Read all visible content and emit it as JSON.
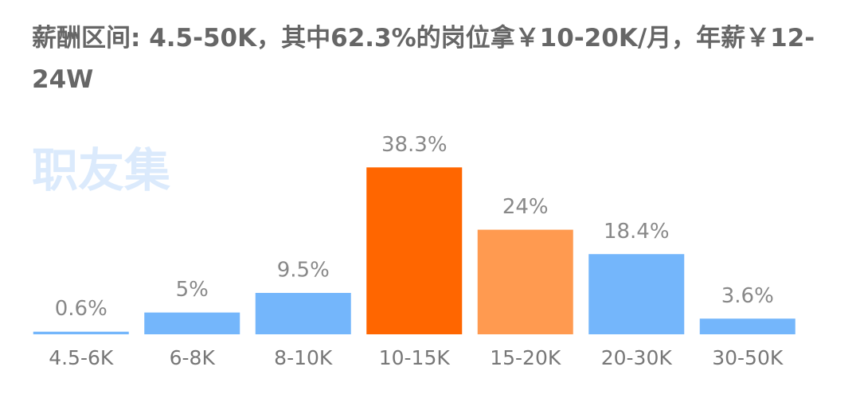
{
  "chart_data": {
    "type": "bar",
    "title": "薪酬区间: 4.5-50K，其中62.3%的岗位拿￥10-20K/月，年薪￥12-24W",
    "watermark": "职友集",
    "categories": [
      "4.5-6K",
      "6-8K",
      "8-10K",
      "10-15K",
      "15-20K",
      "20-30K",
      "30-50K"
    ],
    "values": [
      0.6,
      5,
      9.5,
      38.3,
      24,
      18.4,
      3.6
    ],
    "value_labels": [
      "0.6%",
      "5%",
      "9.5%",
      "38.3%",
      "24%",
      "18.4%",
      "3.6%"
    ],
    "colors": [
      "#74b6fb",
      "#74b6fb",
      "#74b6fb",
      "#ff6600",
      "#ff9a50",
      "#74b6fb",
      "#74b6fb"
    ],
    "ylim": [
      0,
      40
    ]
  }
}
